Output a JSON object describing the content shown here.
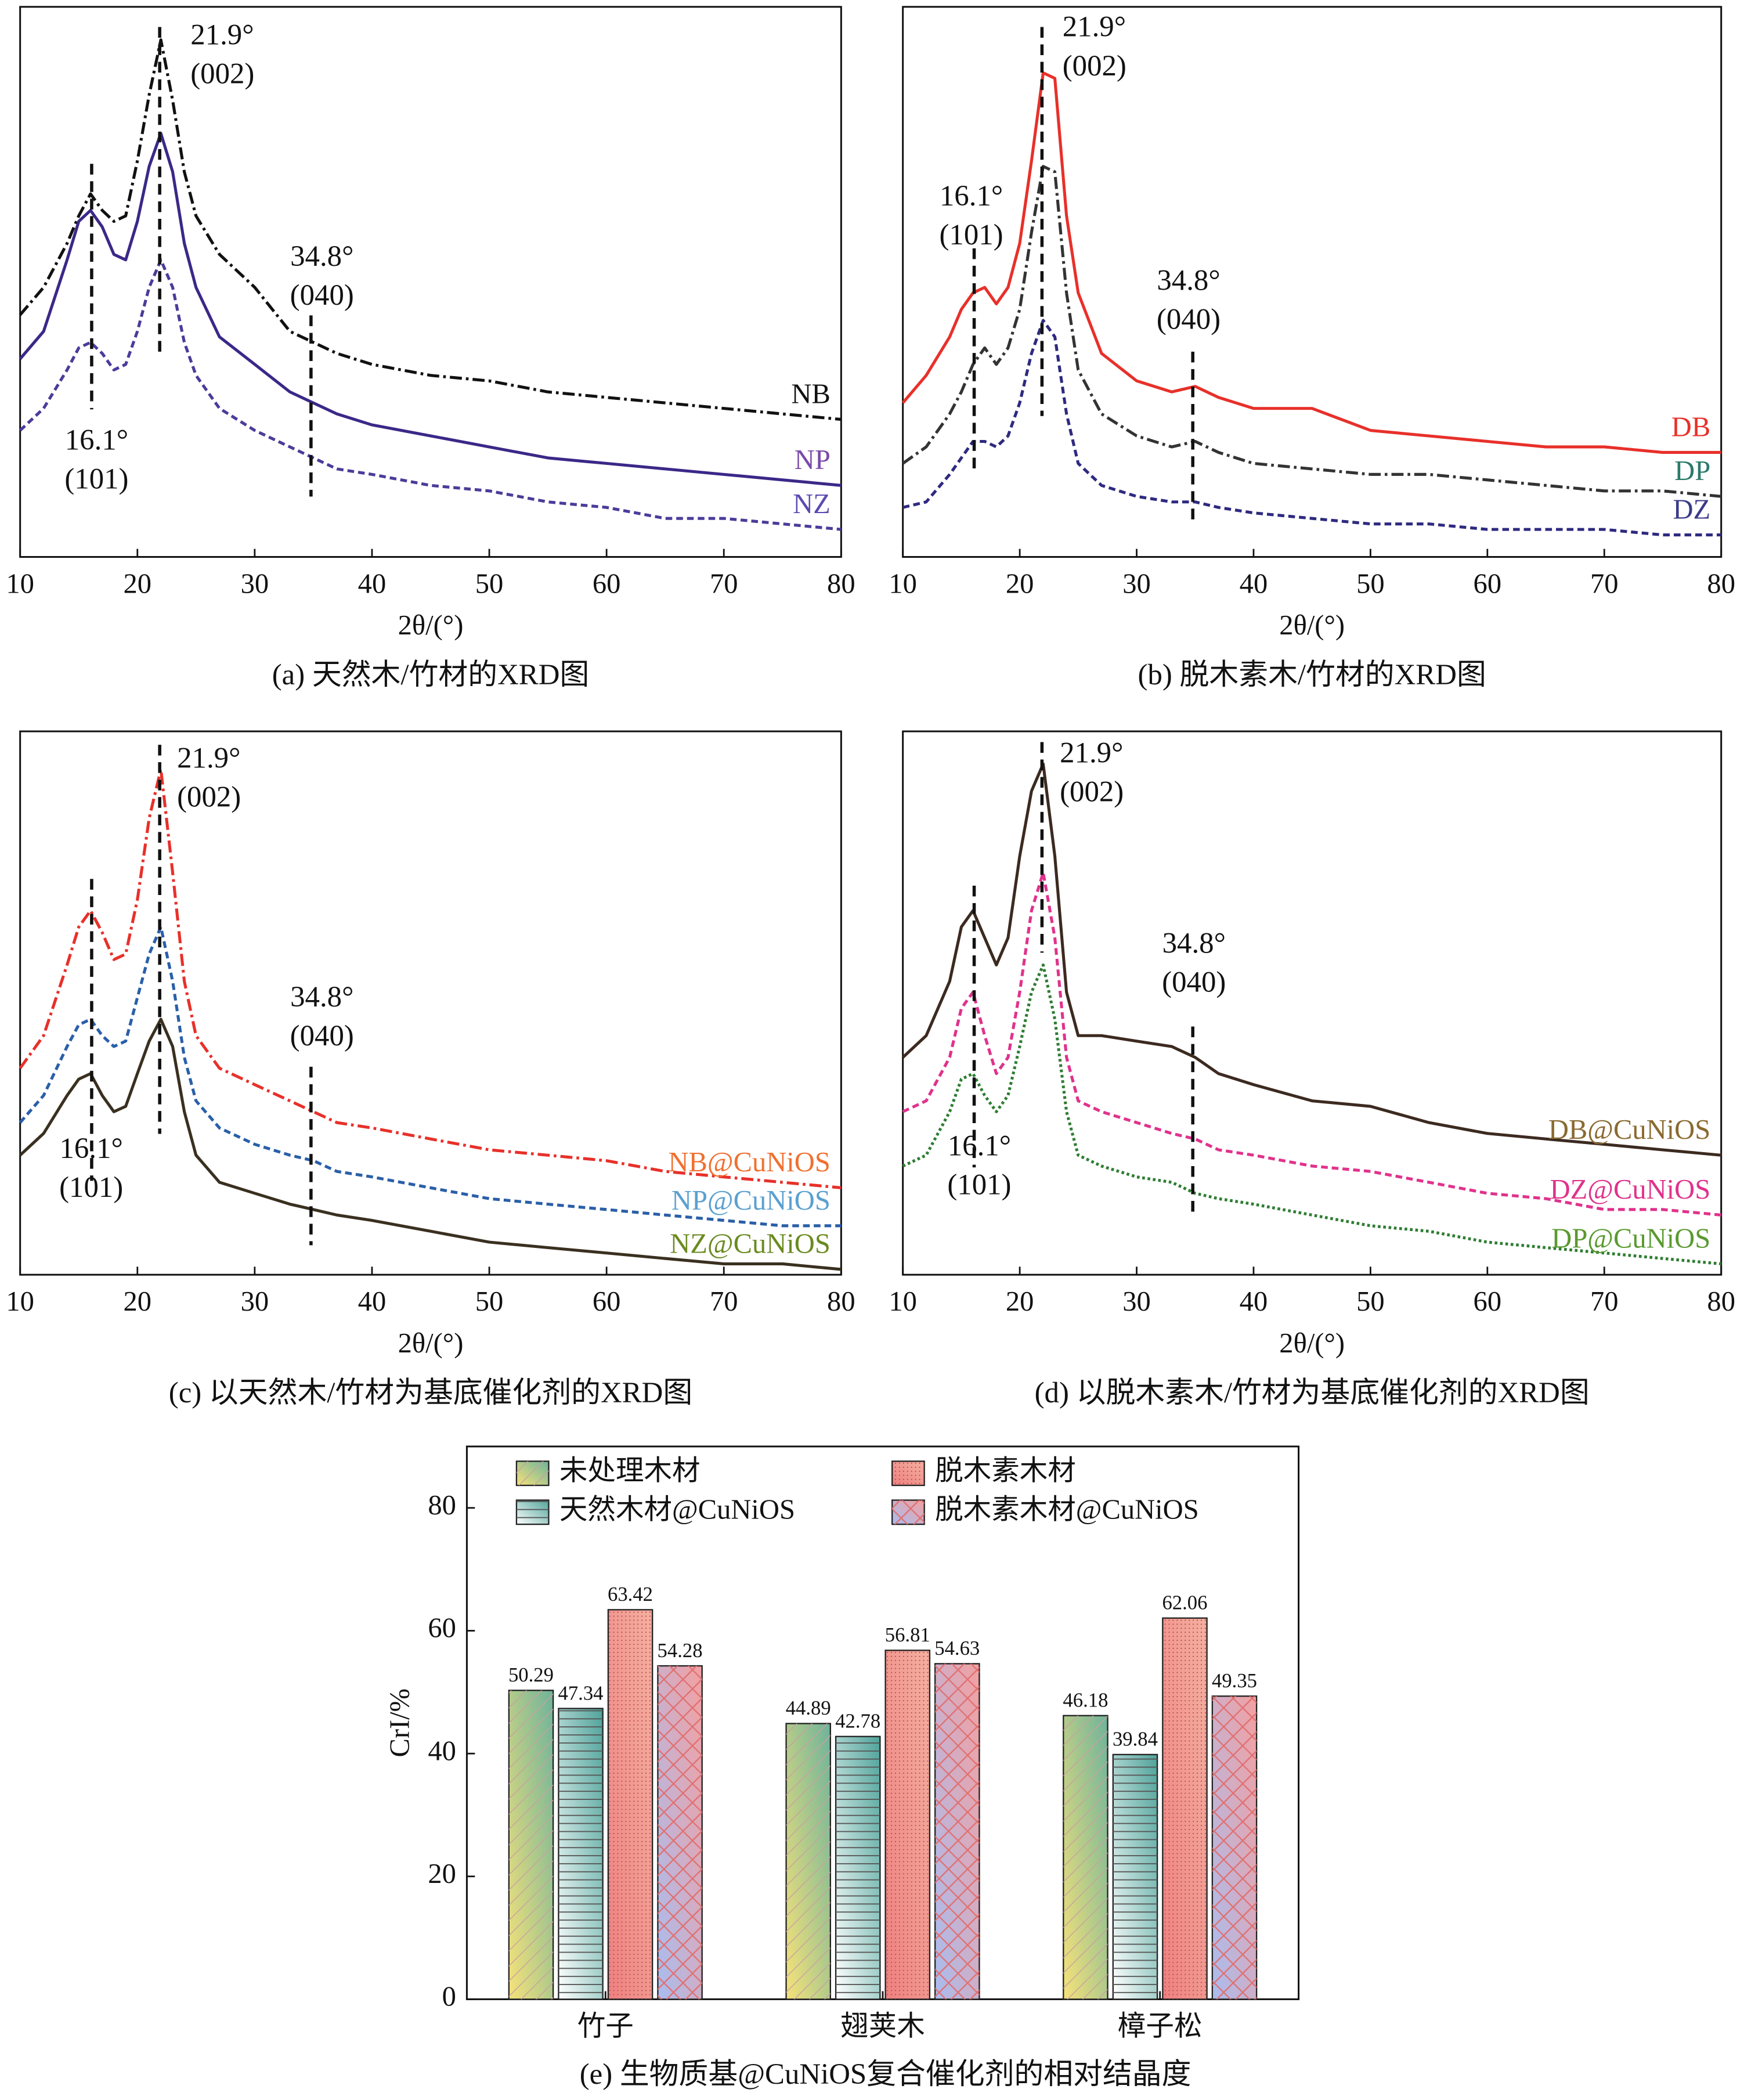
{
  "chart_data": [
    {
      "type": "line",
      "caption": "(a) 天然木/竹材的XRD图",
      "xlabel": "2θ/(°)",
      "x": [
        10,
        12,
        14,
        15,
        16,
        17,
        18,
        19,
        20,
        21,
        22,
        23,
        24,
        25,
        27,
        30,
        33,
        35,
        37,
        40,
        45,
        50,
        55,
        60,
        65,
        70,
        75,
        80
      ],
      "xlim": [
        10,
        80
      ],
      "xticks": [
        10,
        20,
        30,
        40,
        50,
        60,
        70,
        80
      ],
      "ylim": [
        0,
        100
      ],
      "series": [
        {
          "name": "NB",
          "color": "#111111",
          "label_color": "#111111",
          "dash": "dashdot",
          "values": [
            44,
            49,
            57,
            62,
            66,
            63,
            61,
            62,
            72,
            84,
            94,
            83,
            70,
            62,
            55,
            49,
            41,
            39,
            37,
            35,
            33,
            32,
            30,
            29,
            28,
            27,
            26,
            25
          ]
        },
        {
          "name": "NP",
          "color": "#3b2888",
          "label_color": "#7a4aa8",
          "dash": "solid",
          "values": [
            36,
            41,
            54,
            61,
            63,
            60,
            55,
            54,
            61,
            71,
            77,
            70,
            57,
            49,
            40,
            35,
            30,
            28,
            26,
            24,
            22,
            20,
            18,
            17,
            16,
            15,
            14,
            13
          ]
        },
        {
          "name": "NZ",
          "color": "#4a3c9a",
          "label_color": "#5a4ab0",
          "dash": "dashed",
          "values": [
            23,
            27,
            34,
            38,
            39,
            37,
            34,
            35,
            41,
            49,
            54,
            49,
            39,
            33,
            27,
            23,
            20,
            18,
            16,
            15,
            13,
            12,
            10,
            9,
            7,
            7,
            6,
            5
          ]
        }
      ],
      "annotations": [
        {
          "x": 21.9,
          "label": "21.9°",
          "plane": "(002)"
        },
        {
          "x": 16.1,
          "label": "16.1°",
          "plane": "(101)"
        },
        {
          "x": 34.8,
          "label": "34.8°",
          "plane": "(040)"
        }
      ]
    },
    {
      "type": "line",
      "caption": "(b) 脱木素木/竹材的XRD图",
      "xlabel": "2θ/(°)",
      "x": [
        10,
        12,
        14,
        15,
        16,
        17,
        18,
        19,
        20,
        21,
        22,
        23,
        24,
        25,
        27,
        30,
        33,
        35,
        37,
        40,
        45,
        50,
        55,
        60,
        65,
        70,
        75,
        80
      ],
      "xlim": [
        10,
        80
      ],
      "xticks": [
        10,
        20,
        30,
        40,
        50,
        60,
        70,
        80
      ],
      "ylim": [
        0,
        100
      ],
      "series": [
        {
          "name": "DB",
          "color": "#e8302a",
          "label_color": "#e8302a",
          "dash": "solid",
          "values": [
            28,
            33,
            40,
            45,
            48,
            49,
            46,
            49,
            57,
            72,
            88,
            87,
            62,
            48,
            37,
            32,
            30,
            31,
            29,
            27,
            27,
            23,
            22,
            21,
            20,
            20,
            19,
            19
          ]
        },
        {
          "name": "DP",
          "color": "#333333",
          "label_color": "#2a7a6a",
          "dash": "dashdot",
          "values": [
            17,
            20,
            26,
            30,
            35,
            38,
            35,
            38,
            45,
            59,
            71,
            70,
            48,
            34,
            26,
            22,
            20,
            21,
            19,
            17,
            16,
            15,
            15,
            14,
            13,
            12,
            12,
            11
          ]
        },
        {
          "name": "DZ",
          "color": "#2e2a80",
          "label_color": "#3a3a8a",
          "dash": "dashed",
          "values": [
            9,
            10,
            15,
            18,
            21,
            21,
            20,
            22,
            28,
            37,
            43,
            40,
            26,
            17,
            13,
            11,
            10,
            10,
            9,
            8,
            7,
            6,
            6,
            5,
            5,
            5,
            4,
            4
          ]
        }
      ],
      "annotations": [
        {
          "x": 21.9,
          "label": "21.9°",
          "plane": "(002)"
        },
        {
          "x": 16.1,
          "label": "16.1°",
          "plane": "(101)"
        },
        {
          "x": 34.8,
          "label": "34.8°",
          "plane": "(040)"
        }
      ]
    },
    {
      "type": "line",
      "caption": "(c) 以天然木/竹材为基底催化剂的XRD图",
      "xlabel": "2θ/(°)",
      "x": [
        10,
        12,
        14,
        15,
        16,
        17,
        18,
        19,
        20,
        21,
        22,
        23,
        24,
        25,
        27,
        30,
        33,
        35,
        37,
        40,
        45,
        50,
        55,
        60,
        65,
        70,
        75,
        80
      ],
      "xlim": [
        10,
        80
      ],
      "xticks": [
        10,
        20,
        30,
        40,
        50,
        60,
        70,
        80
      ],
      "ylim": [
        0,
        100
      ],
      "series": [
        {
          "name": "NB@CuNiOS",
          "color": "#e8302a",
          "label_color": "#f07030",
          "dash": "dashdot",
          "values": [
            38,
            44,
            57,
            64,
            67,
            63,
            58,
            59,
            69,
            84,
            93,
            74,
            54,
            44,
            38,
            35,
            32,
            30,
            28,
            27,
            25,
            23,
            22,
            21,
            19,
            18,
            17,
            16
          ]
        },
        {
          "name": "NP@CuNiOS",
          "color": "#2a5fa8",
          "label_color": "#5aa0d0",
          "dash": "dashed",
          "values": [
            28,
            33,
            42,
            46,
            47,
            44,
            42,
            43,
            51,
            59,
            64,
            54,
            40,
            32,
            27,
            24,
            22,
            21,
            19,
            18,
            16,
            14,
            13,
            12,
            11,
            10,
            9,
            9
          ]
        },
        {
          "name": "NZ@CuNiOS",
          "color": "#3a3020",
          "label_color": "#6a8a20",
          "dash": "solid",
          "values": [
            22,
            26,
            33,
            36,
            37,
            33,
            30,
            31,
            37,
            43,
            47,
            42,
            30,
            22,
            17,
            15,
            13,
            12,
            11,
            10,
            8,
            6,
            5,
            4,
            3,
            2,
            2,
            1
          ]
        }
      ],
      "annotations": [
        {
          "x": 21.9,
          "label": "21.9°",
          "plane": "(002)"
        },
        {
          "x": 16.1,
          "label": "16.1°",
          "plane": "(101)"
        },
        {
          "x": 34.8,
          "label": "34.8°",
          "plane": "(040)"
        }
      ]
    },
    {
      "type": "line",
      "caption": "(d) 以脱木素木/竹材为基底催化剂的XRD图",
      "xlabel": "2θ/(°)",
      "x": [
        10,
        12,
        14,
        15,
        16,
        17,
        18,
        19,
        20,
        21,
        22,
        23,
        24,
        25,
        27,
        30,
        33,
        35,
        37,
        40,
        45,
        50,
        55,
        60,
        65,
        70,
        75,
        80
      ],
      "xlim": [
        10,
        80
      ],
      "xticks": [
        10,
        20,
        30,
        40,
        50,
        60,
        70,
        80
      ],
      "ylim": [
        0,
        100
      ],
      "series": [
        {
          "name": "DB@CuNiOS",
          "color": "#3c2a20",
          "label_color": "#8a6a30",
          "dash": "solid",
          "values": [
            40,
            44,
            54,
            64,
            67,
            62,
            57,
            62,
            77,
            89,
            94,
            77,
            52,
            44,
            44,
            43,
            42,
            40,
            37,
            35,
            32,
            31,
            28,
            26,
            25,
            24,
            23,
            22
          ]
        },
        {
          "name": "DZ@CuNiOS",
          "color": "#e0328c",
          "label_color": "#e0328c",
          "dash": "dashed",
          "values": [
            30,
            32,
            40,
            49,
            52,
            44,
            37,
            40,
            52,
            67,
            74,
            62,
            40,
            32,
            30,
            28,
            26,
            25,
            23,
            22,
            20,
            19,
            17,
            15,
            14,
            12,
            12,
            11
          ]
        },
        {
          "name": "DP@CuNiOS",
          "color": "#2e7d32",
          "label_color": "#5a9a30",
          "dash": "dotted",
          "values": [
            20,
            22,
            30,
            36,
            37,
            33,
            30,
            33,
            42,
            52,
            57,
            47,
            30,
            22,
            20,
            18,
            17,
            15,
            14,
            13,
            11,
            9,
            8,
            6,
            5,
            4,
            3,
            2
          ]
        }
      ],
      "annotations": [
        {
          "x": 21.9,
          "label": "21.9°",
          "plane": "(002)"
        },
        {
          "x": 16.1,
          "label": "16.1°",
          "plane": "(101)"
        },
        {
          "x": 34.8,
          "label": "34.8°",
          "plane": "(040)"
        }
      ]
    },
    {
      "type": "bar",
      "caption": "(e) 生物质基@CuNiOS复合催化剂的相对结晶度",
      "ylabel": "CrI/%",
      "categories": [
        "竹子",
        "翅荚木",
        "樟子松"
      ],
      "ylim": [
        0,
        90
      ],
      "yticks": [
        0,
        20,
        40,
        60,
        80
      ],
      "legend": "top",
      "series": [
        {
          "name": "未处理木材",
          "color": "#f5e27a",
          "color2": "#6fb39a",
          "hatch": "diagonal",
          "values": [
            50.29,
            44.89,
            46.18
          ]
        },
        {
          "name": "天然木材@CuNiOS",
          "color": "#ffffff",
          "color2": "#4fa39a",
          "hatch": "horizontal",
          "values": [
            47.34,
            42.78,
            39.84
          ]
        },
        {
          "name": "脱木素木材",
          "color": "#ee8080",
          "color2": "#f4b0a0",
          "hatch": "dots",
          "values": [
            63.42,
            56.81,
            62.06
          ]
        },
        {
          "name": "脱木素木材@CuNiOS",
          "color": "#a8bdf0",
          "color2": "#f4a0a0",
          "hatch": "cross",
          "values": [
            54.28,
            54.63,
            49.35
          ]
        }
      ]
    }
  ]
}
